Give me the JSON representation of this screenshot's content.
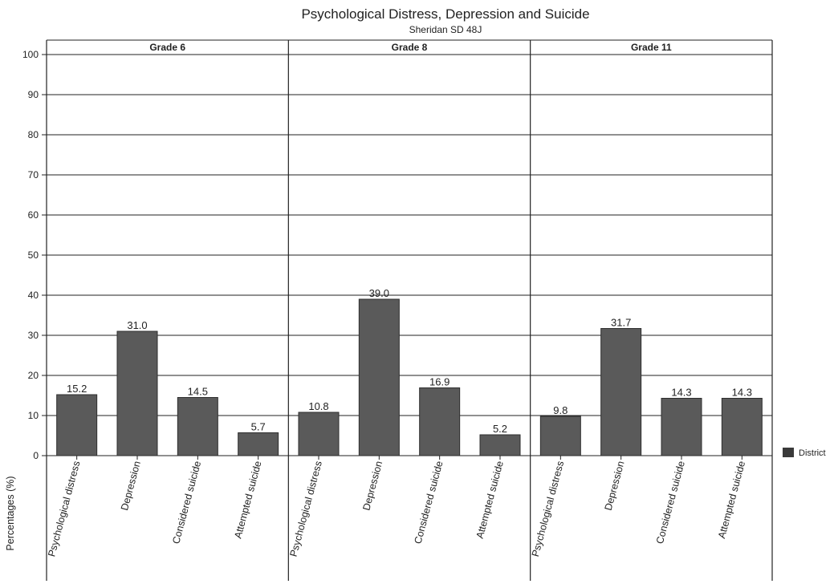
{
  "chart_data": {
    "type": "bar",
    "title": "Psychological Distress, Depression and Suicide",
    "subtitle": "Sheridan SD 48J",
    "ylabel": "Percentages (%)",
    "xlabel": "",
    "ylim": [
      0,
      100
    ],
    "yticks": [
      0,
      10,
      20,
      30,
      40,
      50,
      60,
      70,
      80,
      90,
      100
    ],
    "grid": true,
    "legend_position": "right",
    "legend": [
      "District"
    ],
    "categories": [
      "Psychological distress",
      "Depression",
      "Considered suicide",
      "Attempted suicide"
    ],
    "panels": [
      {
        "label": "Grade 6",
        "series": [
          {
            "name": "District",
            "values": [
              15.2,
              31.0,
              14.5,
              5.7
            ]
          }
        ]
      },
      {
        "label": "Grade 8",
        "series": [
          {
            "name": "District",
            "values": [
              10.8,
              39.0,
              16.9,
              5.2
            ]
          }
        ]
      },
      {
        "label": "Grade 11",
        "series": [
          {
            "name": "District",
            "values": [
              9.8,
              31.7,
              14.3,
              14.3
            ]
          }
        ]
      }
    ],
    "value_labels": [
      [
        "15.2",
        "31.0",
        "14.5",
        "5.7"
      ],
      [
        "10.8",
        "39.0",
        "16.9",
        "5.2"
      ],
      [
        "9.8",
        "31.7",
        "14.3",
        "14.3"
      ]
    ]
  },
  "colors": {
    "bar": "#5a5a5a",
    "bar_stroke": "#2e2e2e",
    "grid": "#222222",
    "frame": "#222222"
  }
}
